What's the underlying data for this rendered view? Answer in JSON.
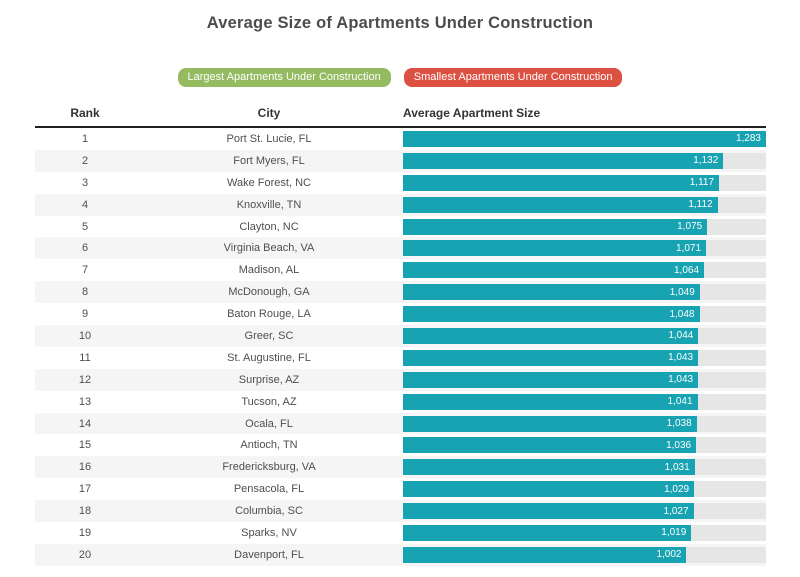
{
  "title": "Average Size of Apartments Under Construction",
  "buttons": {
    "largest": {
      "label": "Largest Apartments Under Construction",
      "color": "#95bb61"
    },
    "smallest": {
      "label": "Smallest Apartments Under Construction",
      "color": "#dd5143"
    }
  },
  "table": {
    "headers": {
      "rank": "Rank",
      "city": "City",
      "size": "Average Apartment Size"
    }
  },
  "chart_data": {
    "type": "bar",
    "orientation": "horizontal",
    "title": "Average Size of Apartments Under Construction",
    "value_label": "Average Apartment Size",
    "max_value": 1283,
    "bar_color": "#17a3b1",
    "track_color": "#e6e6e6",
    "rows": [
      {
        "rank": "1",
        "city": "Port St. Lucie, FL",
        "value": 1283,
        "label": "1,283"
      },
      {
        "rank": "2",
        "city": "Fort Myers, FL",
        "value": 1132,
        "label": "1,132"
      },
      {
        "rank": "3",
        "city": "Wake Forest, NC",
        "value": 1117,
        "label": "1,117"
      },
      {
        "rank": "4",
        "city": "Knoxville, TN",
        "value": 1112,
        "label": "1,112"
      },
      {
        "rank": "5",
        "city": "Clayton, NC",
        "value": 1075,
        "label": "1,075"
      },
      {
        "rank": "6",
        "city": "Virginia Beach, VA",
        "value": 1071,
        "label": "1,071"
      },
      {
        "rank": "7",
        "city": "Madison, AL",
        "value": 1064,
        "label": "1,064"
      },
      {
        "rank": "8",
        "city": "McDonough, GA",
        "value": 1049,
        "label": "1,049"
      },
      {
        "rank": "9",
        "city": "Baton Rouge, LA",
        "value": 1048,
        "label": "1,048"
      },
      {
        "rank": "10",
        "city": "Greer, SC",
        "value": 1044,
        "label": "1,044"
      },
      {
        "rank": "11",
        "city": "St. Augustine, FL",
        "value": 1043,
        "label": "1,043"
      },
      {
        "rank": "12",
        "city": "Surprise, AZ",
        "value": 1043,
        "label": "1,043"
      },
      {
        "rank": "13",
        "city": "Tucson, AZ",
        "value": 1041,
        "label": "1,041"
      },
      {
        "rank": "14",
        "city": "Ocala, FL",
        "value": 1038,
        "label": "1,038"
      },
      {
        "rank": "15",
        "city": "Antioch, TN",
        "value": 1036,
        "label": "1,036"
      },
      {
        "rank": "16",
        "city": "Fredericksburg, VA",
        "value": 1031,
        "label": "1,031"
      },
      {
        "rank": "17",
        "city": "Pensacola, FL",
        "value": 1029,
        "label": "1,029"
      },
      {
        "rank": "18",
        "city": "Columbia, SC",
        "value": 1027,
        "label": "1,027"
      },
      {
        "rank": "19",
        "city": "Sparks, NV",
        "value": 1019,
        "label": "1,019"
      },
      {
        "rank": "20",
        "city": "Davenport, FL",
        "value": 1002,
        "label": "1,002"
      }
    ]
  }
}
